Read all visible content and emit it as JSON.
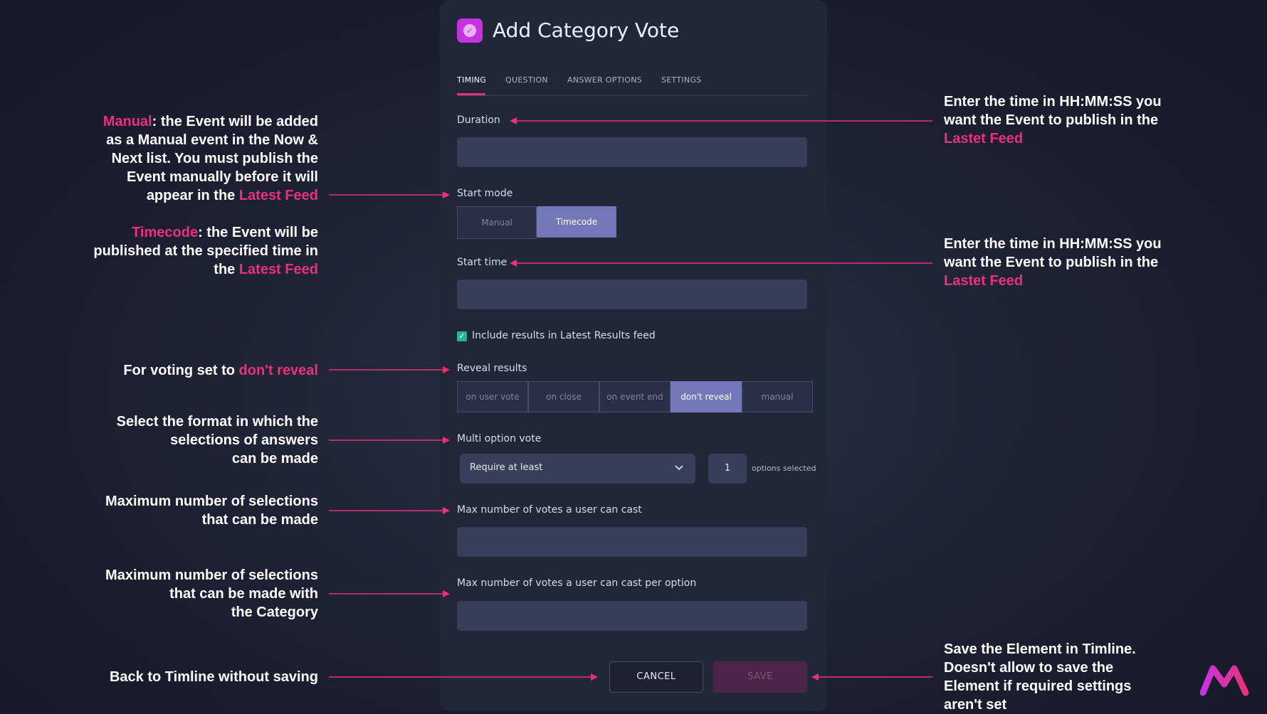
{
  "title": "Add Category Vote",
  "tabs": [
    {
      "label": "TIMING",
      "active": true
    },
    {
      "label": "QUESTION",
      "active": false
    },
    {
      "label": "ANSWER OPTIONS",
      "active": false
    },
    {
      "label": "SETTINGS",
      "active": false
    }
  ],
  "form": {
    "duration_label": "Duration",
    "start_mode_label": "Start mode",
    "start_mode_options": [
      "Manual",
      "Timecode"
    ],
    "start_mode_selected": "Timecode",
    "start_time_label": "Start time",
    "include_results_label": "Include results in Latest Results feed",
    "include_results_checked": true,
    "reveal_label": "Reveal results",
    "reveal_options": [
      "on user vote",
      "on close",
      "on event end",
      "don't reveal",
      "manual"
    ],
    "reveal_selected": "don't reveal",
    "multi_label": "Multi option vote",
    "multi_select_value": "Require at least",
    "multi_count": "1",
    "options_selected_label": "options selected",
    "max_votes_label": "Max number of votes a user can cast",
    "max_votes_per_option_label": "Max number of votes a user can cast per option",
    "cancel_label": "CANCEL",
    "save_label": "SAVE"
  },
  "annotations": {
    "manual": {
      "hl": "Manual",
      "l1": ": the Event will be added",
      "l2": "as a Manual event in the Now &",
      "l3": "Next list. You must publish the",
      "l4": "Event manually before it will",
      "l5": "appear in the ",
      "hl2": "Latest Feed"
    },
    "timecode": {
      "hl": "Timecode",
      "l1": ": the Event will be",
      "l2": "published at the specified time in",
      "l3": "the ",
      "hl2": "Latest Feed"
    },
    "voting": {
      "text": "For voting set to ",
      "hl": "don't reveal"
    },
    "format": {
      "l1": "Select the format in which the",
      "l2": "selections of answers",
      "l3": "can be made"
    },
    "max_sel": {
      "l1": "Maximum number of selections",
      "l2": "that can be made"
    },
    "max_cat": {
      "l1": "Maximum number of selections",
      "l2": "that can be made with",
      "l3": "the Category"
    },
    "back": {
      "text": "Back to Timline without saving"
    },
    "duration_hint": {
      "l1": "Enter the time in HH:MM:SS you",
      "l2": "want the Event to publish in the",
      "hl": "Lastet Feed"
    },
    "start_hint": {
      "l1": "Enter the time in HH:MM:SS you",
      "l2": "want the Event to publish in the",
      "hl": "Lastet Feed"
    },
    "save_hint": {
      "l1": "Save the Element in Timline.",
      "l2": "Doesn't allow to save the",
      "l3": "Element if required settings",
      "l4": "aren't set"
    }
  },
  "colors": {
    "accent": "#e8327a",
    "selected": "#7379b8",
    "checkbox": "#22b79a",
    "brand": "#c634e0"
  }
}
